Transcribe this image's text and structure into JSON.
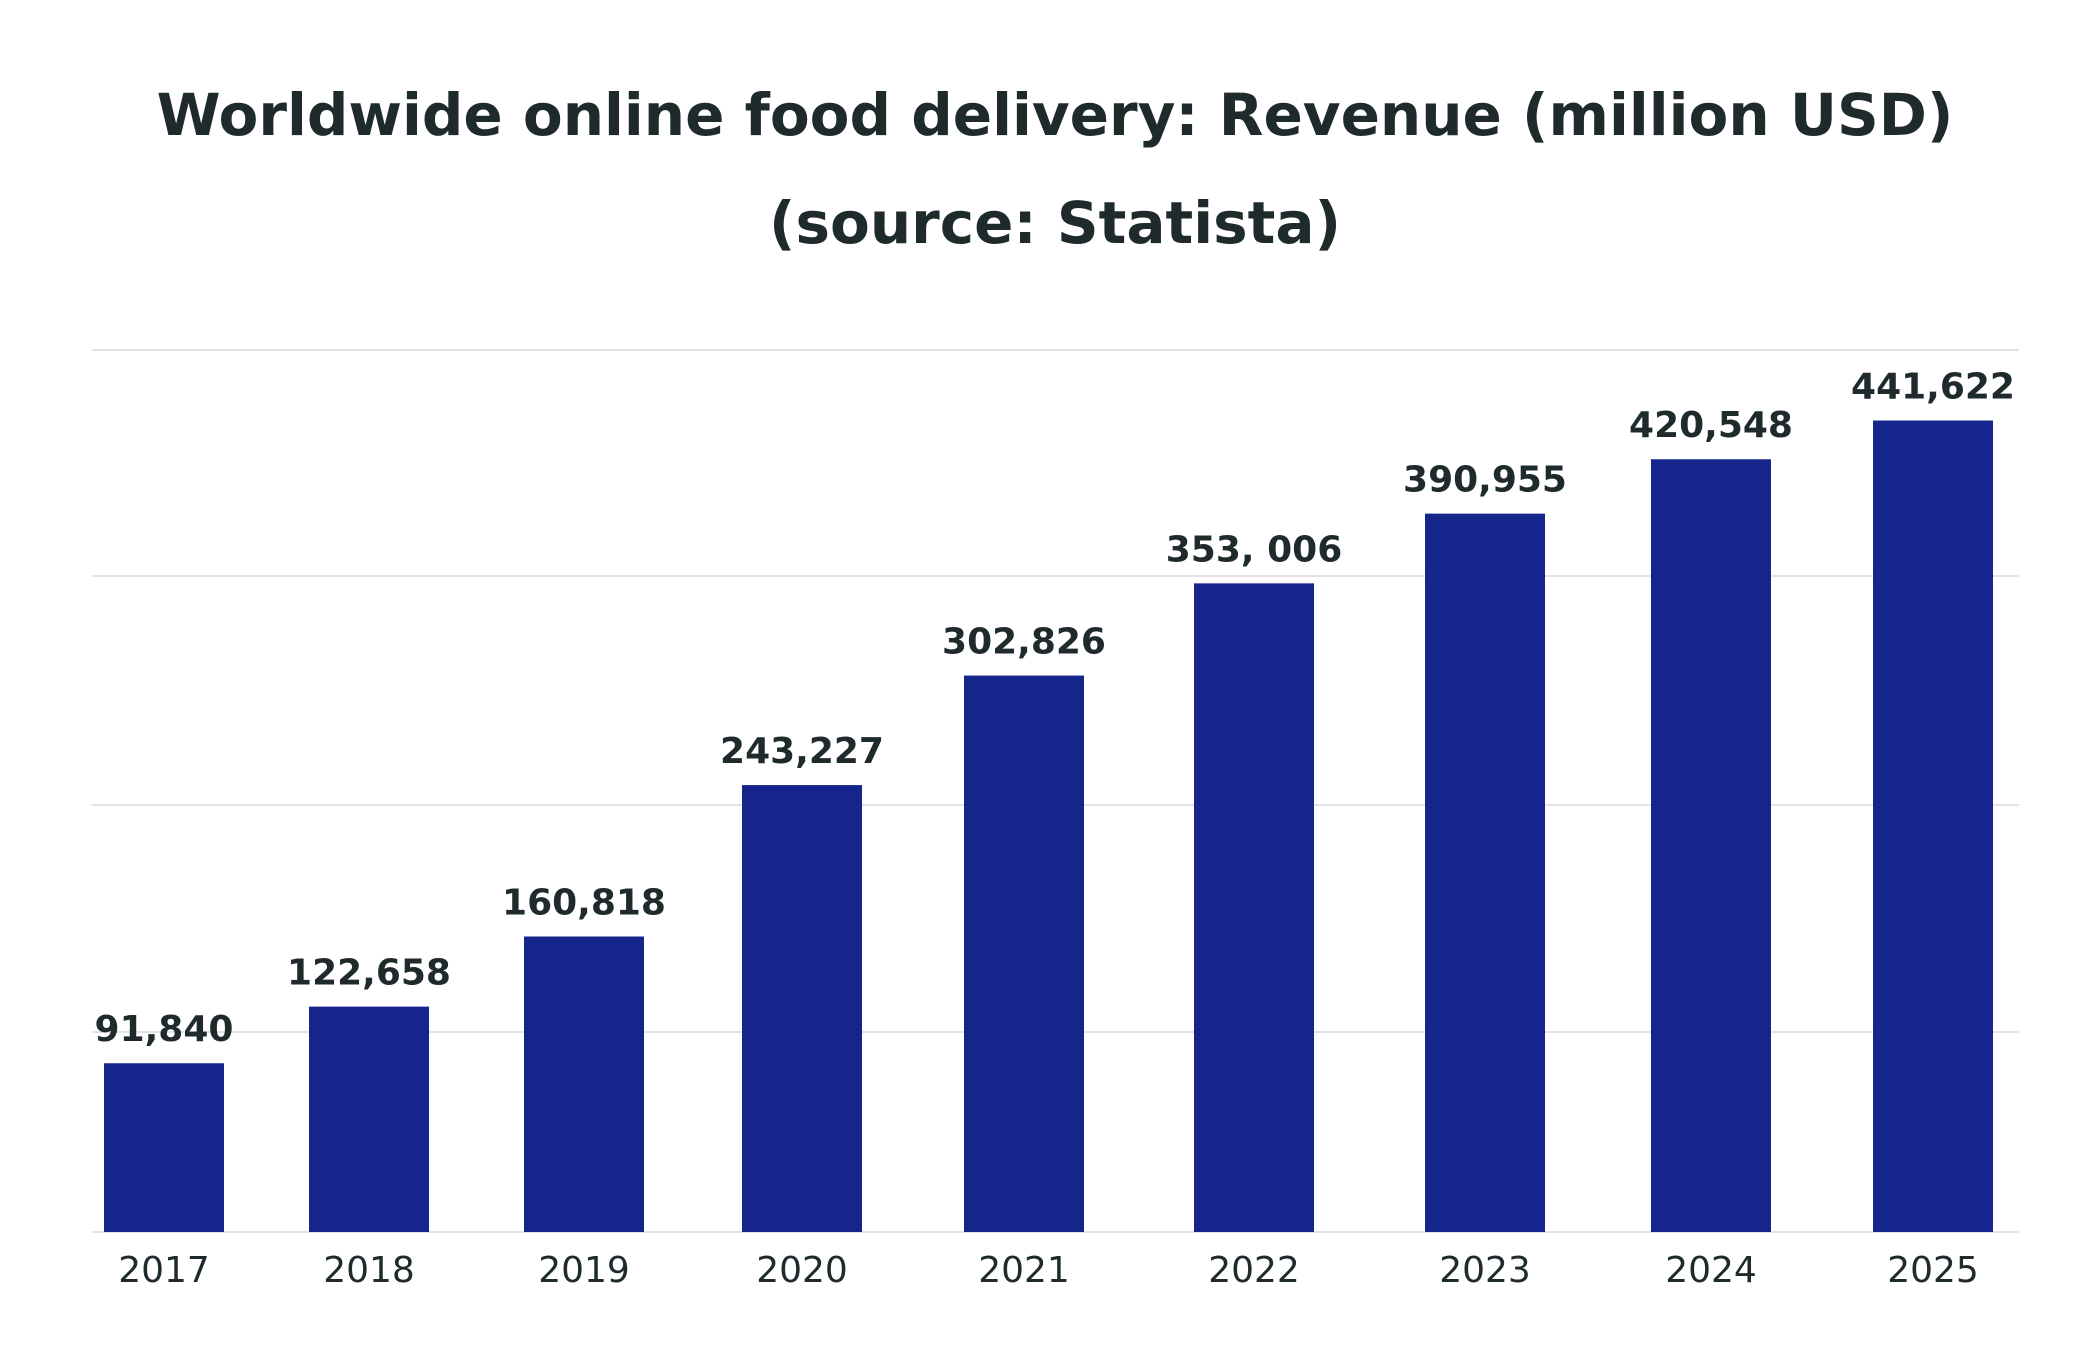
{
  "chart_data": {
    "type": "bar",
    "title": "Worldwide online food delivery: Revenue (million USD)",
    "subtitle": "(source: Statista)",
    "xlabel": "",
    "ylabel": "",
    "categories": [
      "2017",
      "2018",
      "2019",
      "2020",
      "2021",
      "2022",
      "2023",
      "2024",
      "2025"
    ],
    "values": [
      91840,
      122658,
      160818,
      243227,
      302826,
      353006,
      390955,
      420548,
      441622
    ],
    "data_labels": [
      "91,840",
      "122,658",
      "160,818",
      "243,227",
      "302,826",
      "353, 006",
      "390,955",
      "420,548",
      "441,622"
    ],
    "ylim": [
      0,
      480000
    ],
    "grid": true,
    "y_tick_labels_shown": false,
    "legend": "none",
    "colors": {
      "bar": "#16258c",
      "text": "#1f2a2d",
      "grid": "#e3e3e3"
    }
  }
}
